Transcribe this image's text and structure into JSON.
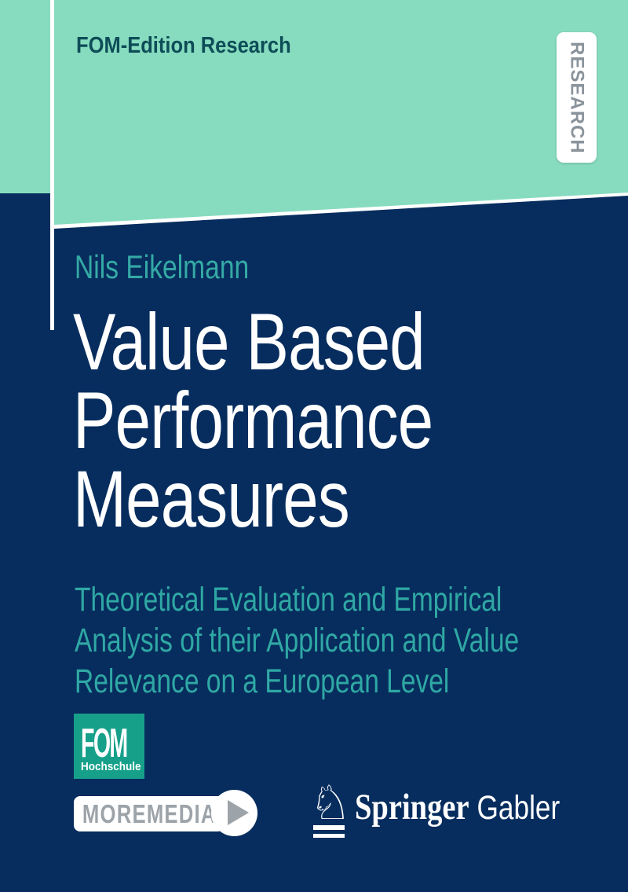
{
  "colors": {
    "background_navy": "#072D5E",
    "mint_green": "#87DCBF",
    "teal_text": "#2FA8A4",
    "petrol_text": "#0D4D57",
    "fom_green": "#16A08A",
    "gray_text": "#9CA3A9",
    "white": "#FFFFFF"
  },
  "header": {
    "series_label": "FOM-Edition Research",
    "research_tab_label": "RESEARCH"
  },
  "book": {
    "author": "Nils Eikelmann",
    "title_lines": [
      "Value Based",
      "Performance",
      "Measures"
    ],
    "subtitle_lines": [
      "Theoretical Evaluation and Empirical",
      "Analysis of their Application and Value",
      "Relevance on a European Level"
    ]
  },
  "footer": {
    "fom_logo": {
      "text": "FOM",
      "subtext": "Hochschule"
    },
    "moremedia": {
      "label": "MOREMEDIA",
      "icon": "play-icon"
    },
    "publisher": {
      "icon": "chess-knight-icon",
      "knight_glyph": "♘",
      "name_serif": "Springer",
      "name_sans": "Gabler"
    }
  }
}
